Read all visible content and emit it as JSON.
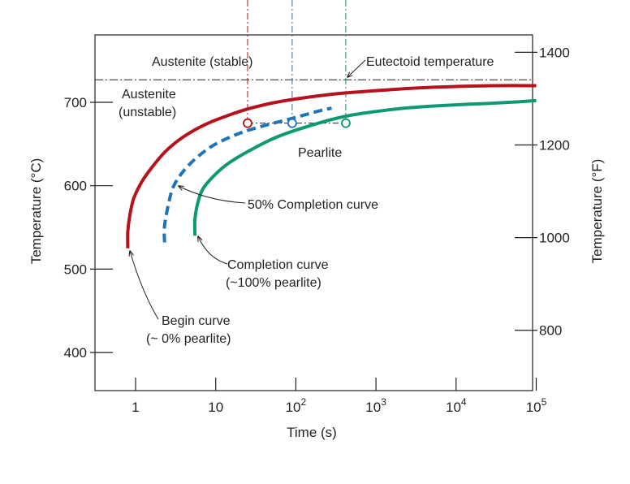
{
  "chart_data": {
    "type": "line",
    "xlabel": "Time (s)",
    "ylabel_left": "Temperature (°C)",
    "ylabel_right": "Temperature (°F)",
    "x_scale": "log",
    "xlim": [
      0.5,
      100000
    ],
    "ylim_c": [
      370,
      770
    ],
    "x_ticks": [
      {
        "value": 1,
        "base": "1",
        "exp": ""
      },
      {
        "value": 10,
        "base": "10",
        "exp": ""
      },
      {
        "value": 100,
        "base": "10",
        "exp": "2"
      },
      {
        "value": 1000,
        "base": "10",
        "exp": "3"
      },
      {
        "value": 10000,
        "base": "10",
        "exp": "4"
      },
      {
        "value": 100000,
        "base": "10",
        "exp": "5"
      }
    ],
    "y_ticks_c": [
      400,
      500,
      600,
      700
    ],
    "y_ticks_f": [
      800,
      1000,
      1200,
      1400
    ],
    "grid": false,
    "eutectoid_temperature_c": 727,
    "isotherm_c": 675,
    "series": [
      {
        "name": "Begin curve (~0% pearlite)",
        "style": "solid",
        "color": "#b5121b",
        "points": [
          [
            0.8,
            525
          ],
          [
            0.8,
            545
          ],
          [
            0.85,
            565
          ],
          [
            0.95,
            585
          ],
          [
            1.2,
            605
          ],
          [
            1.6,
            622
          ],
          [
            2.3,
            640
          ],
          [
            3.5,
            655
          ],
          [
            5.5,
            667
          ],
          [
            9,
            677
          ],
          [
            15,
            685
          ],
          [
            25,
            692
          ],
          [
            50,
            699
          ],
          [
            100,
            704
          ],
          [
            300,
            710
          ],
          [
            1000,
            714
          ],
          [
            3000,
            717
          ],
          [
            10000,
            719
          ],
          [
            30000,
            720
          ],
          [
            100000,
            720
          ]
        ]
      },
      {
        "name": "50% Completion curve",
        "style": "dashed",
        "color": "#1f73b7",
        "points": [
          [
            2.3,
            532
          ],
          [
            2.3,
            552
          ],
          [
            2.6,
            580
          ],
          [
            3,
            600
          ],
          [
            4,
            618
          ],
          [
            6,
            635
          ],
          [
            10,
            650
          ],
          [
            20,
            663
          ],
          [
            40,
            672
          ],
          [
            70,
            678
          ],
          [
            100,
            682
          ],
          [
            200,
            690
          ],
          [
            280,
            693
          ]
        ]
      },
      {
        "name": "Completion curve (~100% pearlite)",
        "style": "solid",
        "color": "#0d9a72",
        "points": [
          [
            5.5,
            540
          ],
          [
            5.5,
            560
          ],
          [
            6,
            580
          ],
          [
            7,
            597
          ],
          [
            10,
            614
          ],
          [
            15,
            628
          ],
          [
            30,
            645
          ],
          [
            60,
            659
          ],
          [
            150,
            672
          ],
          [
            400,
            683
          ],
          [
            1000,
            689
          ],
          [
            3000,
            694
          ],
          [
            10000,
            697
          ],
          [
            30000,
            699
          ],
          [
            100000,
            702
          ]
        ]
      }
    ],
    "markers": [
      {
        "x": 25,
        "y": 675,
        "color": "#b5121b"
      },
      {
        "x": 90,
        "y": 675,
        "color": "#1f73b7"
      },
      {
        "x": 420,
        "y": 675,
        "color": "#0d9a72"
      }
    ],
    "annotations": {
      "austenite_stable": "Austenite (stable)",
      "eutectoid": "Eutectoid temperature",
      "austenite_unstable_1": "Austenite",
      "austenite_unstable_2": "(unstable)",
      "pearlite": "Pearlite",
      "fifty_percent": "50% Completion curve",
      "completion_1": "Completion curve",
      "completion_2": "(~100% pearlite)",
      "begin_1": "Begin curve",
      "begin_2": "(~ 0% pearlite)"
    },
    "colors": {
      "begin": "#b5121b",
      "half": "#1f73b7",
      "complete": "#0d9a72",
      "axis": "#231f20"
    }
  }
}
